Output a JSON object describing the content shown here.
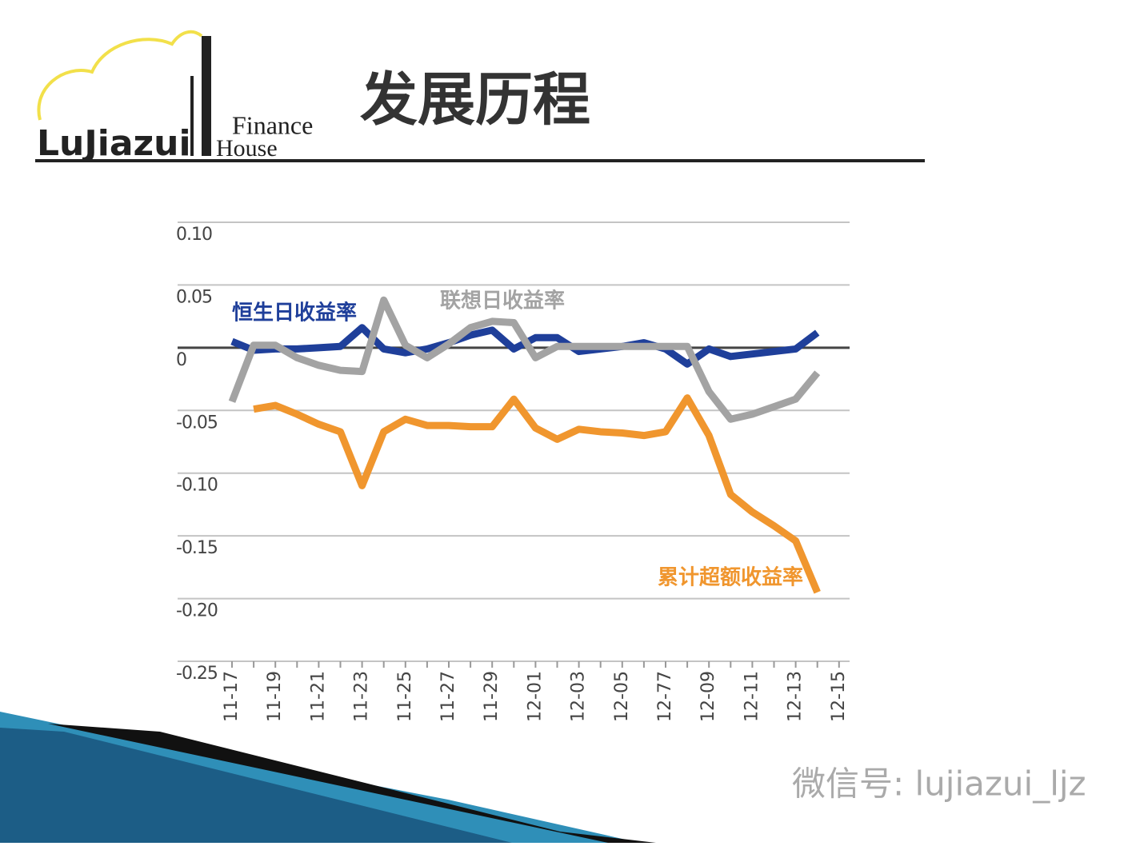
{
  "header": {
    "logo": {
      "name": "LuJiazui",
      "finance": "Finance",
      "house": "House"
    },
    "title": "发展历程"
  },
  "chart_data": {
    "type": "line",
    "categories": [
      "11-17",
      null,
      "11-19",
      null,
      "11-21",
      null,
      "11-23",
      null,
      "11-25",
      null,
      "11-27",
      null,
      "11-29",
      null,
      "12-01",
      null,
      "12-03",
      null,
      "12-05",
      null,
      "12-77",
      null,
      "12-09",
      null,
      "12-11",
      null,
      "12-13",
      null,
      "12-15"
    ],
    "series": [
      {
        "name": "恒生日收益率",
        "color": "#1f3f9a",
        "values": [
          0.005,
          -0.002,
          -0.001,
          -0.001,
          0,
          0.001,
          0.016,
          -0.001,
          -0.004,
          -0.001,
          0.004,
          0.01,
          0.014,
          -0.001,
          0.008,
          0.008,
          -0.003,
          -0.001,
          0.001,
          0.004,
          -0.001,
          -0.013,
          -0.001,
          -0.007,
          -0.005,
          -0.003,
          -0.001,
          0.012,
          null
        ]
      },
      {
        "name": "联想日收益率",
        "color": "#a3a3a3",
        "values": [
          -0.043,
          0.002,
          0.002,
          -0.008,
          -0.014,
          -0.018,
          -0.019,
          0.038,
          0.002,
          -0.008,
          0.003,
          0.016,
          0.021,
          0.02,
          -0.008,
          0.001,
          0.001,
          0.001,
          0.001,
          0.001,
          0.001,
          0.001,
          -0.035,
          -0.057,
          -0.053,
          -0.047,
          -0.041,
          -0.02,
          null
        ]
      },
      {
        "name": "累计超额收益率",
        "color": "#f0962e",
        "values": [
          null,
          -0.049,
          -0.046,
          -0.053,
          -0.061,
          -0.067,
          -0.11,
          -0.067,
          -0.057,
          -0.062,
          -0.062,
          -0.063,
          -0.063,
          -0.041,
          -0.064,
          -0.073,
          -0.065,
          -0.067,
          -0.068,
          -0.07,
          -0.067,
          -0.04,
          -0.07,
          -0.117,
          -0.131,
          -0.142,
          -0.154,
          -0.195,
          null
        ]
      }
    ],
    "ylim": [
      -0.25,
      0.1
    ],
    "yticks": [
      {
        "value": 0.1,
        "label": "0.10"
      },
      0.05,
      0,
      -0.05,
      {
        "value": -0.1,
        "label": "-0.10"
      },
      -0.15,
      {
        "value": -0.2,
        "label": "-0.20"
      },
      -0.25
    ],
    "grid": true
  },
  "watermark": "微信号: lujiazui_ljz"
}
